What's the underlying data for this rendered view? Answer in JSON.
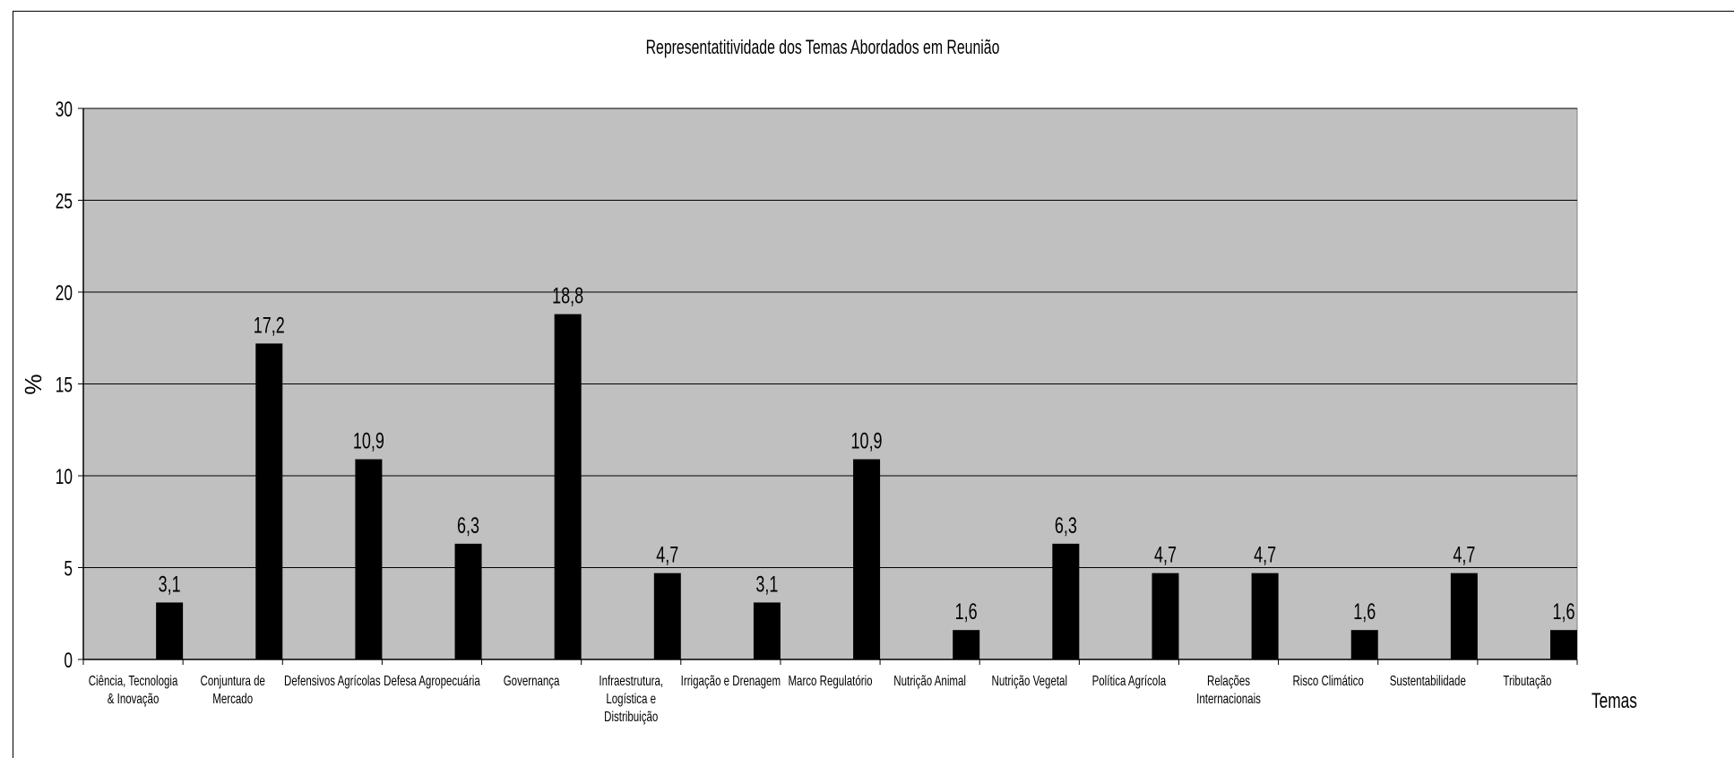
{
  "chart_data": {
    "type": "bar",
    "title": "Representatitividade dos Temas Abordados em Reunião",
    "xlabel": "Temas",
    "ylabel": "%",
    "ylim": [
      0,
      30
    ],
    "yticks": [
      0,
      5,
      10,
      15,
      20,
      25,
      30
    ],
    "grid": true,
    "legend": "none",
    "colors": {
      "plot_background": "#c0c0c0",
      "bar": "#000000",
      "gridline": "#000000"
    },
    "categories": [
      "Ciência, Tecnologia & Inovação",
      "Conjuntura de Mercado",
      "Defensivos Agrícolas",
      "Defesa Agropecuária",
      "Governança",
      "Infraestrutura, Logística e Distribuição",
      "Irrigação e Drenagem",
      "Marco Regulatório",
      "Nutrição Animal",
      "Nutrição Vegetal",
      "Política Agrícola",
      "Relações Internacionais",
      "Risco Climático",
      "Sustentabilidade",
      "Tributação"
    ],
    "values": [
      3.1,
      17.2,
      10.9,
      6.3,
      18.8,
      4.7,
      3.1,
      10.9,
      1.6,
      6.3,
      4.7,
      4.7,
      1.6,
      4.7,
      1.6
    ],
    "data_labels": [
      "3,1",
      "17,2",
      "10,9",
      "6,3",
      "18,8",
      "4,7",
      "3,1",
      "10,9",
      "1,6",
      "6,3",
      "4,7",
      "4,7",
      "1,6",
      "4,7",
      "1,6"
    ]
  }
}
